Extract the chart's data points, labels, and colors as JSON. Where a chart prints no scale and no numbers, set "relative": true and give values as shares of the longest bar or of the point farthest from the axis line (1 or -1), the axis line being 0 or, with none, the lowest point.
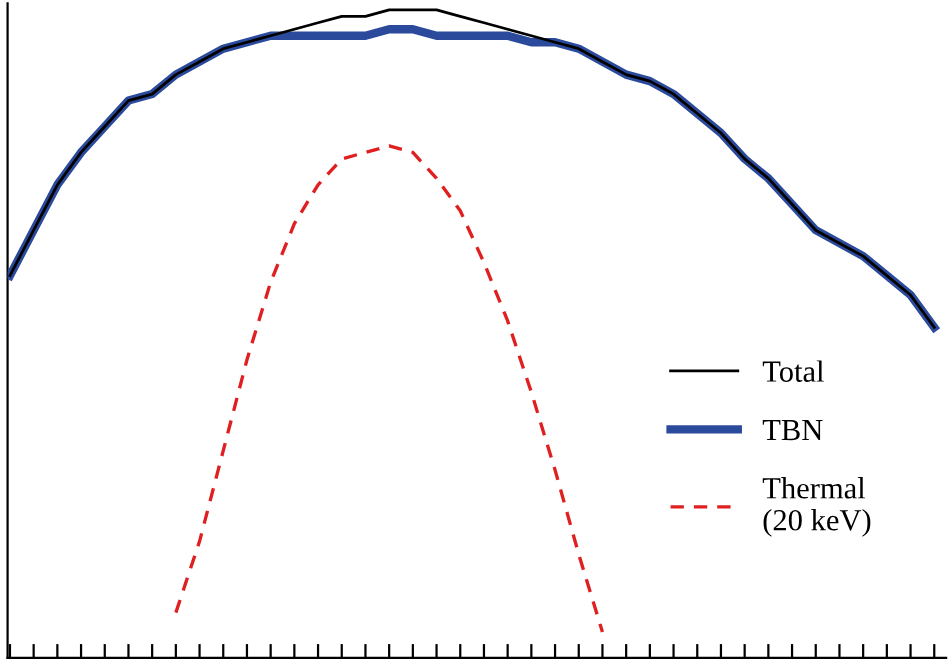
{
  "chart_data": {
    "type": "line",
    "relative": true,
    "legend": "right",
    "categories": [
      null,
      null,
      null,
      null,
      null,
      null,
      null,
      null,
      null,
      null,
      null,
      null,
      null,
      null,
      null,
      null,
      null,
      null,
      null,
      null,
      null,
      null,
      null,
      null,
      null,
      null,
      null,
      null,
      null,
      null,
      null,
      null,
      null,
      null,
      null,
      null,
      null,
      null,
      null,
      null
    ],
    "series": [
      {
        "name": "Total",
        "color": "#000000",
        "line_style": "solid",
        "values": [
          0.59,
          0.66,
          0.73,
          0.78,
          0.82,
          0.86,
          0.87,
          0.9,
          0.92,
          0.94,
          0.95,
          0.96,
          0.97,
          0.98,
          0.99,
          0.99,
          1.0,
          1.0,
          1.0,
          0.99,
          0.98,
          0.97,
          0.96,
          0.95,
          0.94,
          0.92,
          0.9,
          0.89,
          0.87,
          0.84,
          0.81,
          0.77,
          0.74,
          0.7,
          0.66,
          0.64,
          0.62,
          0.59,
          0.56,
          0.51
        ]
      },
      {
        "name": "TBN",
        "color": "#2b4a9c",
        "line_style": "solid",
        "values": [
          0.59,
          0.66,
          0.73,
          0.78,
          0.82,
          0.86,
          0.87,
          0.9,
          0.92,
          0.94,
          0.95,
          0.96,
          0.96,
          0.96,
          0.96,
          0.96,
          0.97,
          0.97,
          0.96,
          0.96,
          0.96,
          0.96,
          0.95,
          0.95,
          0.94,
          0.92,
          0.9,
          0.89,
          0.87,
          0.84,
          0.81,
          0.77,
          0.74,
          0.7,
          0.66,
          0.64,
          0.62,
          0.59,
          0.56,
          0.51
        ]
      },
      {
        "name": "Thermal\n(20 keV)",
        "color": "#e02020",
        "line_style": "dashed",
        "values": [
          null,
          null,
          null,
          null,
          null,
          null,
          null,
          0.07,
          0.18,
          0.32,
          0.46,
          0.58,
          0.67,
          0.73,
          0.77,
          0.78,
          0.79,
          0.78,
          0.74,
          0.69,
          0.61,
          0.52,
          0.41,
          0.29,
          0.16,
          0.04,
          null,
          null,
          null,
          null,
          null,
          null,
          null,
          null,
          null,
          null,
          null,
          null,
          null,
          null
        ]
      }
    ]
  }
}
